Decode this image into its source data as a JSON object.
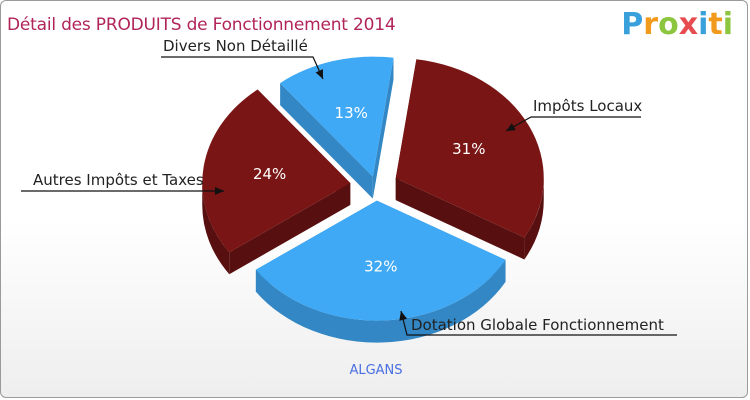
{
  "chart_data": {
    "type": "pie",
    "title": "Détail des PRODUITS de Fonctionnement 2014",
    "labels": [
      "Impôts Locaux",
      "Dotation Globale Fonctionnement",
      "Autres Impôts et Taxes",
      "Divers Non Détaillé"
    ],
    "values": [
      31,
      32,
      24,
      13
    ],
    "value_labels": [
      "31%",
      "32%",
      "24%",
      "13%"
    ],
    "colors": [
      "#7a1515",
      "#3fa9f5",
      "#7a1515",
      "#3fa9f5"
    ],
    "footer": "ALGANS",
    "exploded": true,
    "three_d": true
  },
  "logo": {
    "letters": [
      "P",
      "r",
      "o",
      "x",
      "i",
      "t",
      "i"
    ]
  }
}
